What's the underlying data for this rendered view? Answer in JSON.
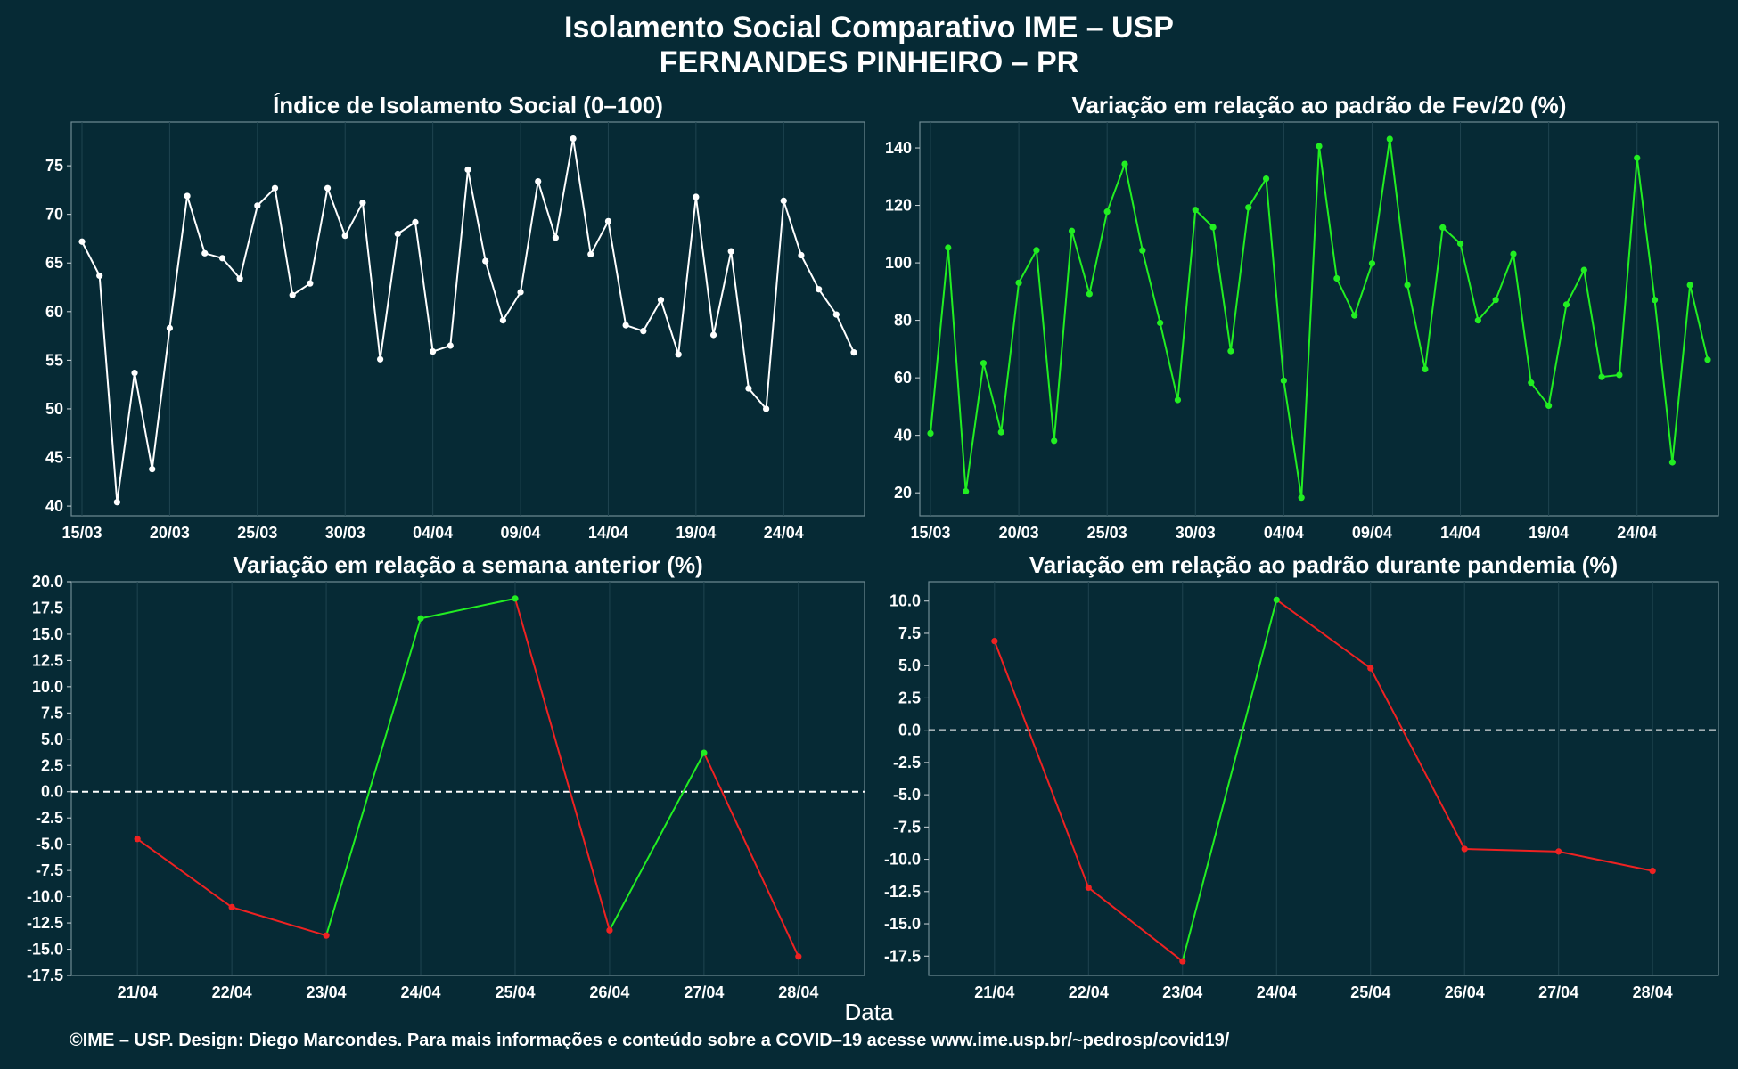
{
  "header": {
    "title_line1": "Isolamento Social Comparativo IME – USP",
    "title_line2": "FERNANDES PINHEIRO – PR"
  },
  "x_axis_title": "Data",
  "footer": "©IME – USP. Design: Diego Marcondes. Para mais informações e conteúdo sobre a COVID–19 acesse www.ime.usp.br/~pedrosp/covid19/",
  "colors": {
    "background": "#062a35",
    "white_series": "#ffffff",
    "positive": "#22ee22",
    "negative": "#ee2222"
  },
  "chart_data": [
    {
      "id": "panel1",
      "type": "line",
      "title": "Índice de Isolamento Social (0–100)",
      "x_start": "15/03",
      "x_ticks": [
        "15/03",
        "20/03",
        "25/03",
        "30/03",
        "04/04",
        "09/04",
        "14/04",
        "19/04",
        "24/04"
      ],
      "y_ticks": [
        "40",
        "45",
        "50",
        "55",
        "60",
        "65",
        "70",
        "75"
      ],
      "ylim": [
        39,
        79.5
      ],
      "color_mode": "single",
      "values": [
        67.2,
        63.7,
        40.4,
        53.7,
        43.8,
        58.3,
        71.9,
        66.0,
        65.5,
        63.4,
        70.9,
        72.7,
        61.7,
        62.9,
        72.7,
        67.8,
        71.2,
        55.1,
        68.0,
        69.2,
        55.9,
        56.5,
        74.6,
        65.2,
        59.1,
        62.0,
        73.4,
        67.6,
        77.8,
        65.9,
        69.3,
        58.6,
        58.0,
        61.2,
        55.6,
        71.8,
        57.6,
        66.2,
        52.1,
        50.0,
        71.4,
        65.8,
        62.3,
        59.7,
        55.8
      ]
    },
    {
      "id": "panel2",
      "type": "line",
      "title": "Variação em relação ao padrão de Fev/20 (%)",
      "x_start": "15/03",
      "x_ticks": [
        "15/03",
        "20/03",
        "25/03",
        "30/03",
        "04/04",
        "09/04",
        "14/04",
        "19/04",
        "24/04"
      ],
      "y_ticks": [
        "20",
        "40",
        "60",
        "80",
        "100",
        "120",
        "140"
      ],
      "ylim": [
        12,
        149
      ],
      "color_mode": "single_green",
      "values": [
        40.7,
        105.3,
        20.5,
        65.1,
        41.1,
        93.1,
        104.4,
        38.1,
        111.1,
        89.2,
        117.8,
        134.4,
        104.3,
        79.1,
        52.3,
        118.4,
        112.4,
        69.3,
        119.3,
        129.3,
        59.0,
        18.3,
        140.6,
        94.6,
        81.7,
        99.8,
        143.1,
        92.3,
        63.0,
        112.3,
        106.7,
        80.0,
        87.1,
        103.1,
        58.3,
        50.3,
        85.5,
        97.5,
        60.3,
        61.0,
        136.5,
        87.1,
        30.6,
        92.3,
        66.3
      ]
    },
    {
      "id": "panel3",
      "type": "line",
      "title": "Variação em relação a semana anterior (%)",
      "categories": [
        "21/04",
        "22/04",
        "23/04",
        "24/04",
        "25/04",
        "26/04",
        "27/04",
        "28/04"
      ],
      "y_ticks": [
        "-17.5",
        "-15.0",
        "-12.5",
        "-10.0",
        "-7.5",
        "-5.0",
        "-2.5",
        "0.0",
        "2.5",
        "5.0",
        "7.5",
        "10.0",
        "12.5",
        "15.0",
        "17.5",
        "20.0"
      ],
      "ylim": [
        -17.5,
        20.0
      ],
      "color_mode": "updown",
      "reference_line": 0,
      "values": [
        -4.5,
        -11.0,
        -13.7,
        16.5,
        18.4,
        -13.2,
        3.7,
        -15.7
      ]
    },
    {
      "id": "panel4",
      "type": "line",
      "title": "Variação em relação ao padrão durante pandemia (%)",
      "categories": [
        "21/04",
        "22/04",
        "23/04",
        "24/04",
        "25/04",
        "26/04",
        "27/04",
        "28/04"
      ],
      "y_ticks": [
        "-17.5",
        "-15.0",
        "-12.5",
        "-10.0",
        "-7.5",
        "-5.0",
        "-2.5",
        "0.0",
        "2.5",
        "5.0",
        "7.5",
        "10.0"
      ],
      "ylim": [
        -19.0,
        11.5
      ],
      "color_mode": "updown",
      "reference_line": 0,
      "values": [
        6.9,
        -12.2,
        -17.9,
        10.1,
        4.8,
        -9.2,
        -9.4,
        -10.9
      ]
    }
  ]
}
